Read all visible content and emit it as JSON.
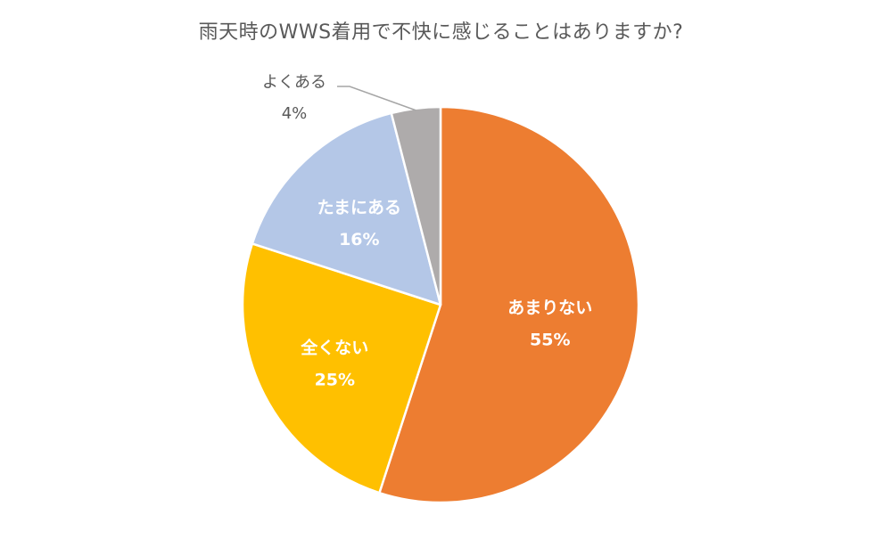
{
  "chart_data": {
    "type": "pie",
    "title": "雨天時のWWS着用で不快に感じることはありますか?",
    "slices": [
      {
        "label": "あまりない",
        "value": 55,
        "value_label": "55%",
        "color": "#ED7D31"
      },
      {
        "label": "全くない",
        "value": 25,
        "value_label": "25%",
        "color": "#FFC000"
      },
      {
        "label": "たまにある",
        "value": 16,
        "value_label": "16%",
        "color": "#B4C7E7"
      },
      {
        "label": "よくある",
        "value": 4,
        "value_label": "4%",
        "color": "#AEABAB"
      }
    ],
    "start": "12 o'clock",
    "direction": "clockwise",
    "slice_border_color": "#FFFFFF"
  }
}
